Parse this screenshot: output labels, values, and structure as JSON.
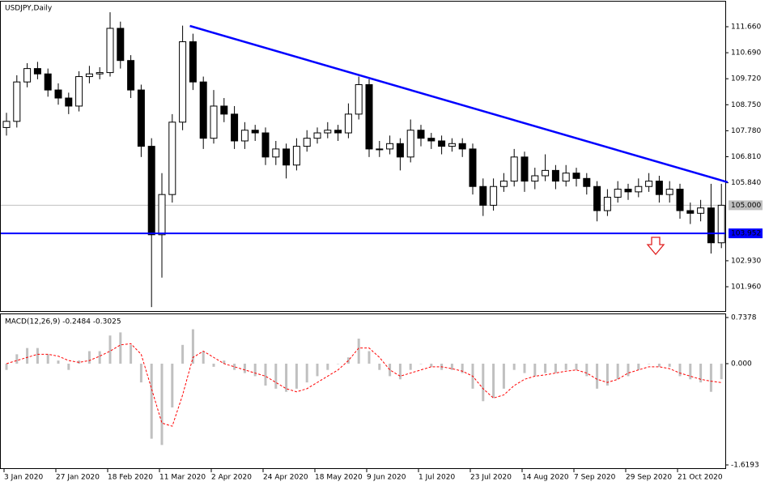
{
  "chart_data": [
    {
      "type": "candlestick",
      "title": "USDJPY,Daily",
      "open": [
        107.9,
        108.13,
        109.6,
        110.1,
        109.9,
        109.3,
        109.0,
        108.7,
        109.8,
        109.9,
        109.95,
        111.6,
        110.4,
        109.3,
        107.2,
        103.9,
        105.4,
        108.1,
        111.1,
        109.6,
        107.5,
        108.7,
        108.4,
        107.4,
        107.8,
        107.7,
        106.8,
        107.1,
        106.5,
        107.2,
        107.5,
        107.7,
        107.8,
        107.7,
        108.4,
        109.5,
        107.1,
        107.1,
        107.3,
        106.8,
        107.8,
        107.5,
        107.4,
        107.2,
        107.3,
        107.1,
        105.7,
        105.0,
        105.7,
        105.9,
        106.8,
        105.9,
        106.1,
        106.3,
        105.9,
        106.2,
        106.0,
        105.7,
        104.8,
        105.3,
        105.6,
        105.5,
        105.7,
        105.9,
        105.4,
        105.6,
        104.8,
        104.7,
        104.9,
        103.6
      ],
      "high": [
        108.45,
        109.85,
        110.3,
        110.35,
        110.1,
        109.55,
        109.2,
        110.0,
        110.2,
        110.15,
        112.2,
        111.85,
        110.6,
        109.5,
        107.5,
        106.2,
        108.4,
        111.7,
        111.4,
        109.8,
        109.3,
        109.0,
        108.7,
        108.1,
        108.0,
        107.9,
        107.4,
        107.3,
        107.5,
        107.8,
        107.9,
        108.1,
        108.0,
        108.8,
        109.8,
        109.7,
        107.4,
        107.6,
        107.5,
        108.2,
        108.0,
        107.7,
        107.6,
        107.5,
        107.5,
        107.3,
        106.0,
        106.0,
        106.2,
        107.1,
        107.0,
        106.4,
        106.9,
        106.5,
        106.5,
        106.4,
        106.2,
        105.9,
        105.6,
        105.9,
        105.8,
        106.0,
        106.2,
        106.1,
        105.9,
        105.8,
        105.1,
        105.2,
        105.8,
        105.8
      ],
      "low": [
        107.6,
        107.9,
        109.4,
        109.7,
        109.05,
        108.75,
        108.4,
        108.5,
        109.55,
        109.7,
        109.8,
        110.1,
        109.0,
        106.8,
        101.2,
        102.3,
        105.1,
        107.8,
        109.3,
        107.1,
        107.3,
        108.1,
        107.1,
        107.1,
        107.4,
        106.5,
        106.5,
        106.0,
        106.3,
        107.0,
        107.3,
        107.5,
        107.4,
        107.5,
        108.2,
        106.8,
        106.8,
        106.9,
        106.3,
        106.6,
        107.2,
        107.1,
        106.9,
        107.0,
        106.8,
        105.4,
        104.6,
        104.8,
        105.5,
        105.7,
        105.5,
        105.6,
        105.9,
        105.6,
        105.7,
        105.7,
        105.4,
        104.4,
        104.6,
        105.1,
        105.2,
        105.3,
        105.5,
        105.1,
        105.1,
        104.5,
        104.3,
        104.4,
        103.2,
        103.4
      ],
      "close": [
        108.13,
        109.6,
        110.1,
        109.9,
        109.3,
        109.0,
        108.7,
        109.8,
        109.9,
        109.95,
        111.6,
        110.4,
        109.3,
        107.2,
        103.9,
        105.4,
        108.1,
        111.1,
        109.6,
        107.5,
        108.7,
        108.4,
        107.4,
        107.8,
        107.7,
        106.8,
        107.1,
        106.5,
        107.2,
        107.5,
        107.7,
        107.8,
        107.7,
        108.4,
        109.5,
        107.1,
        107.1,
        107.3,
        106.8,
        107.8,
        107.5,
        107.4,
        107.2,
        107.3,
        107.1,
        105.7,
        105.0,
        105.7,
        105.9,
        106.8,
        105.9,
        106.1,
        106.3,
        105.9,
        106.2,
        106.0,
        105.7,
        104.8,
        105.3,
        105.6,
        105.5,
        105.7,
        105.9,
        105.4,
        105.6,
        104.8,
        104.7,
        104.9,
        103.6,
        105.0
      ],
      "candle_color": "#000000",
      "ylim": [
        101.084,
        112.506
      ],
      "yticks": [
        {
          "value": 111.66,
          "label": "111.660"
        },
        {
          "value": 110.69,
          "label": "110.690"
        },
        {
          "value": 109.72,
          "label": "109.720"
        },
        {
          "value": 108.75,
          "label": "108.750"
        },
        {
          "value": 107.78,
          "label": "107.780"
        },
        {
          "value": 106.81,
          "label": "106.810"
        },
        {
          "value": 105.84,
          "label": "105.840"
        },
        {
          "value": 102.93,
          "label": "102.930"
        },
        {
          "value": 101.96,
          "label": "101.960"
        }
      ],
      "price_line": {
        "value": 105,
        "label": "105.000",
        "color": "#c0c0c0"
      },
      "hline": {
        "value": 103.952,
        "color": "#0000ff"
      },
      "trendline": {
        "x": [
          17.7,
          69.6
        ],
        "y": [
          111.69,
          105.86
        ],
        "color": "#0000ff"
      }
    },
    {
      "type": "macd",
      "title": "MACD(12,26,9) -0.2484 -0.3025",
      "categories": [
        "3 Jan 2020",
        null,
        null,
        null,
        null,
        "27 Jan 2020",
        null,
        null,
        null,
        null,
        "18 Feb 2020",
        null,
        null,
        null,
        null,
        "11 Mar 2020",
        null,
        null,
        null,
        null,
        "2 Apr 2020",
        null,
        null,
        null,
        null,
        "24 Apr 2020",
        null,
        null,
        null,
        null,
        "18 May 2020",
        null,
        null,
        null,
        null,
        "9 Jun 2020",
        null,
        null,
        null,
        null,
        "1 Jul 2020",
        null,
        null,
        null,
        null,
        "23 Jul 2020",
        null,
        null,
        null,
        null,
        "14 Aug 2020",
        null,
        null,
        null,
        null,
        "7 Sep 2020",
        null,
        null,
        null,
        null,
        "29 Sep 2020",
        null,
        null,
        null,
        null,
        "21 Oct 2020",
        null,
        null,
        null,
        null
      ],
      "histogram": [
        -0.1,
        0.15,
        0.25,
        0.25,
        0.15,
        0.05,
        -0.1,
        0.05,
        0.2,
        0.2,
        0.45,
        0.5,
        0.3,
        -0.3,
        -1.2,
        -1.3,
        -0.7,
        0.3,
        0.55,
        0.2,
        -0.05,
        0.05,
        -0.1,
        -0.15,
        -0.2,
        -0.35,
        -0.4,
        -0.45,
        -0.4,
        -0.3,
        -0.2,
        -0.1,
        0.0,
        0.1,
        0.4,
        0.2,
        -0.1,
        -0.2,
        -0.25,
        -0.1,
        0.0,
        -0.05,
        -0.1,
        -0.1,
        -0.15,
        -0.4,
        -0.6,
        -0.55,
        -0.4,
        -0.1,
        -0.15,
        -0.2,
        -0.15,
        -0.15,
        -0.1,
        -0.1,
        -0.2,
        -0.4,
        -0.35,
        -0.25,
        -0.2,
        -0.1,
        0.0,
        -0.05,
        -0.05,
        -0.2,
        -0.25,
        -0.3,
        -0.45,
        -0.2484
      ],
      "histogram_color": "#c0c0c0",
      "signal": [
        0.0,
        0.05,
        0.1,
        0.15,
        0.15,
        0.12,
        0.05,
        0.02,
        0.05,
        0.12,
        0.2,
        0.3,
        0.32,
        0.15,
        -0.4,
        -0.95,
        -1.0,
        -0.5,
        0.1,
        0.2,
        0.1,
        0.0,
        -0.05,
        -0.1,
        -0.15,
        -0.2,
        -0.3,
        -0.4,
        -0.45,
        -0.4,
        -0.3,
        -0.2,
        -0.1,
        0.05,
        0.25,
        0.25,
        0.1,
        -0.1,
        -0.2,
        -0.15,
        -0.1,
        -0.05,
        -0.05,
        -0.08,
        -0.12,
        -0.2,
        -0.4,
        -0.55,
        -0.5,
        -0.35,
        -0.25,
        -0.2,
        -0.18,
        -0.15,
        -0.12,
        -0.1,
        -0.15,
        -0.25,
        -0.3,
        -0.25,
        -0.15,
        -0.1,
        -0.05,
        -0.05,
        -0.08,
        -0.15,
        -0.2,
        -0.25,
        -0.28,
        -0.3025
      ],
      "signal_color": "#ff0000",
      "ylim": [
        -1.6193,
        0.7378
      ],
      "yticks": [
        0.7378,
        {
          "value": 0,
          "label": "0.000"
        },
        -1.6193
      ]
    }
  ]
}
